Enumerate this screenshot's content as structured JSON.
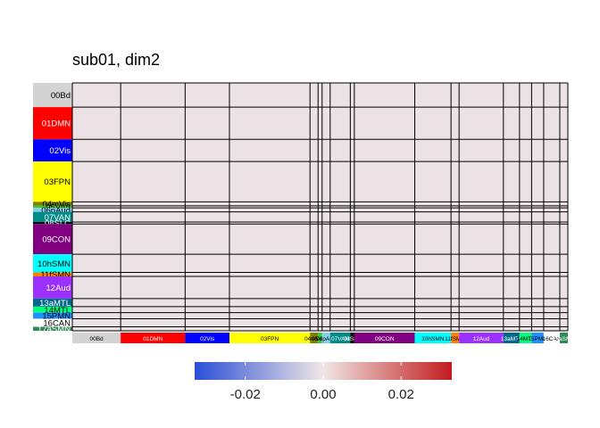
{
  "chart_data": {
    "type": "heatmap",
    "title": "sub01, dim2",
    "groups": [
      {
        "label": "00Bd",
        "size": 12,
        "color": "#d3d3d3"
      },
      {
        "label": "01DMN",
        "size": 16,
        "color": "#ff0000"
      },
      {
        "label": "02Vis",
        "size": 11,
        "color": "#0000ff"
      },
      {
        "label": "03FPN",
        "size": 20,
        "color": "#ffff00"
      },
      {
        "label": "04mVis",
        "size": 2,
        "color": "#808000"
      },
      {
        "label": "05VAtt",
        "size": 1,
        "color": "#32cd32"
      },
      {
        "label": "06pAud",
        "size": 2,
        "color": "#87ceeb"
      },
      {
        "label": "07VAN",
        "size": 5,
        "color": "#008b8b"
      },
      {
        "label": "08SLC",
        "size": 1,
        "color": "#000000"
      },
      {
        "label": "09CON",
        "size": 15,
        "color": "#800080"
      },
      {
        "label": "10hSMN",
        "size": 9,
        "color": "#00ffff"
      },
      {
        "label": "11fSMN",
        "size": 2,
        "color": "#ff7f00"
      },
      {
        "label": "12Aud",
        "size": 11,
        "color": "#9b30ff"
      },
      {
        "label": "13aMTL",
        "size": 4,
        "color": "#00688b"
      },
      {
        "label": "14MTL",
        "size": 3,
        "color": "#00ff7f"
      },
      {
        "label": "15PMN",
        "size": 3,
        "color": "#1e90ff"
      },
      {
        "label": "16CAN",
        "size": 4,
        "color": "#ffffff"
      },
      {
        "label": "17aSMN",
        "size": 2,
        "color": "#2e8b57"
      }
    ],
    "cell_value_shown": 0.0,
    "colorbar": {
      "ticks": [
        -0.02,
        0.0,
        0.02
      ],
      "tick_labels": [
        "-0.02",
        "0.00",
        "0.02"
      ],
      "low_color": "#2a4fd6",
      "mid_color": "#f0e6e6",
      "high_color": "#c21c1c",
      "range": [
        -0.033,
        0.033
      ]
    },
    "cell_color": "#ebe2e5",
    "legend_position": "bottom"
  }
}
